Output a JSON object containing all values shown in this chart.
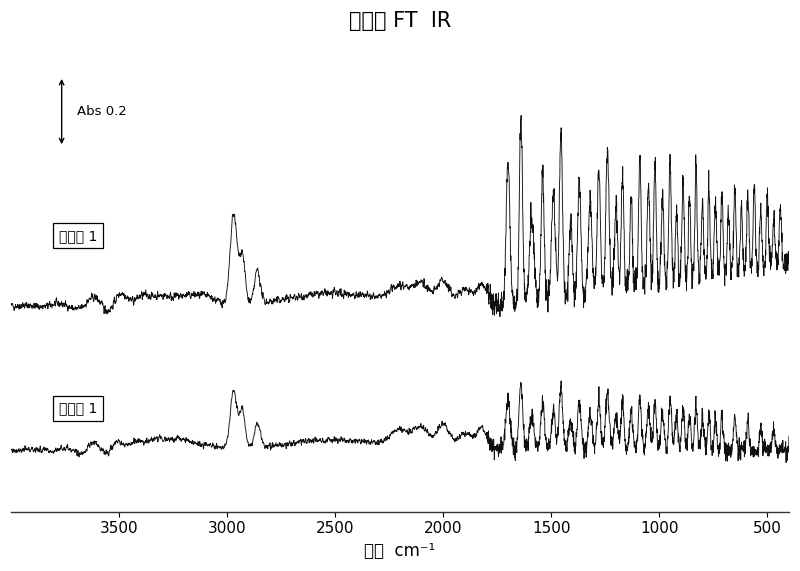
{
  "title": "漫反射 FT  IR",
  "xlabel": "波数  cm⁻¹",
  "x_min": 4000,
  "x_max": 400,
  "x_ticks": [
    3500,
    3000,
    2500,
    2000,
    1500,
    1000,
    500
  ],
  "abs_scale_label": "Abs 0.2",
  "label1": "比较例 1",
  "label2": "实施例 1",
  "background_color": "#ffffff",
  "line_color": "#111111",
  "title_fontsize": 15,
  "label_fontsize": 12,
  "tick_fontsize": 11
}
